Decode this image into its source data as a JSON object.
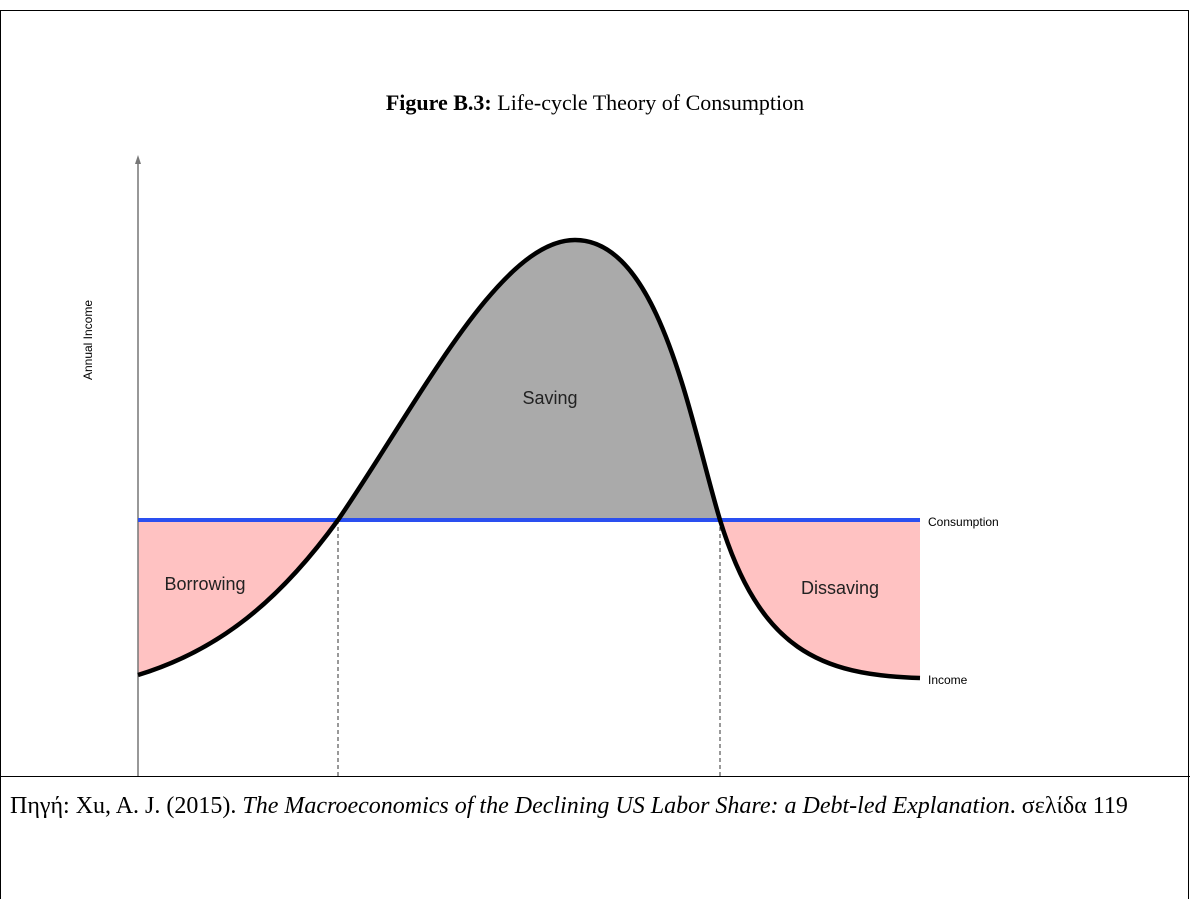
{
  "figure": {
    "title_prefix": "Figure B.3:",
    "title": "Life-cycle Theory of Consumption",
    "y_axis_label": "Annual Income",
    "regions": [
      "Saving",
      "Borrowing",
      "Dissaving"
    ],
    "lines": [
      "Consumption",
      "Income"
    ]
  },
  "caption": {
    "lead": "Πηγή: Xu, A. J. (2015). ",
    "work": "The Macroeconomics of the Declining US Labor Share: a Debt-led Explanation",
    "tail": ". σελίδα 119"
  }
}
